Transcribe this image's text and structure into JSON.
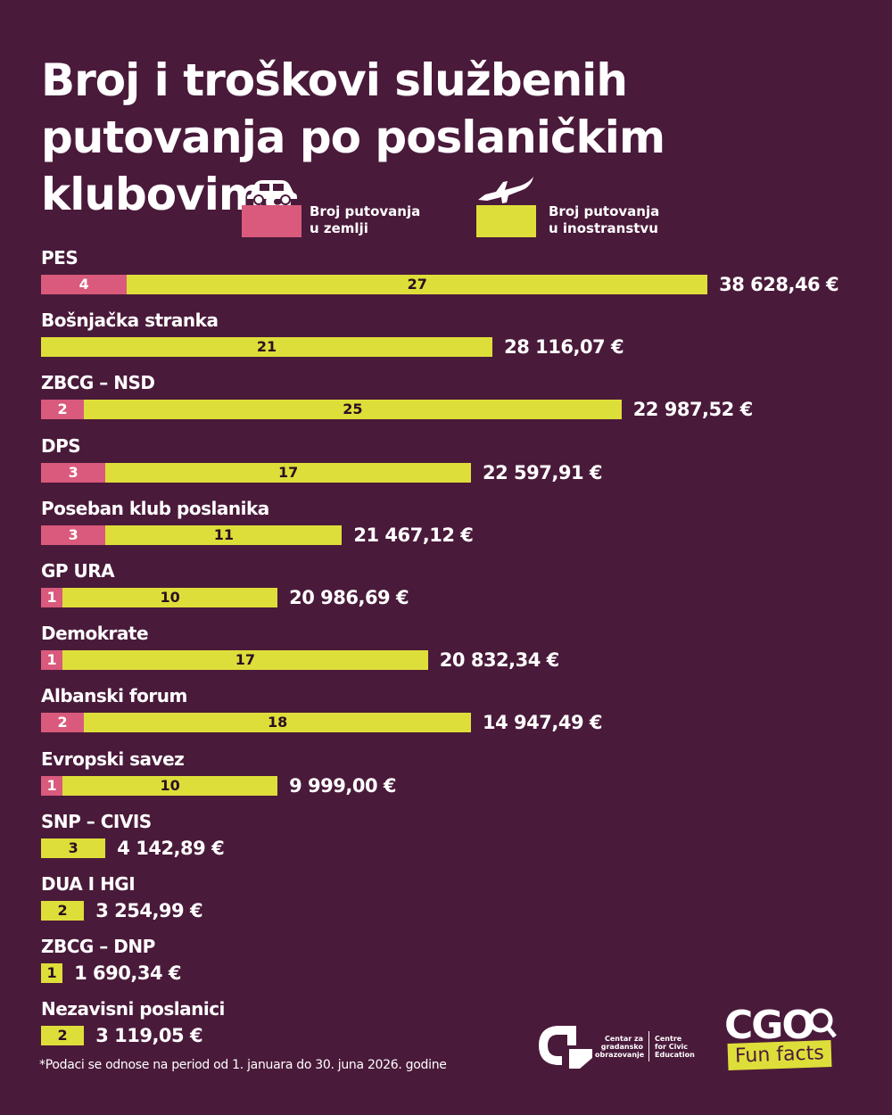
{
  "title": "Broj i troškovi službenih putovanja po poslaničkim klubovima",
  "legend": {
    "domestic": {
      "line1": "Broj putovanja",
      "line2": "u zemlji",
      "icon": "car-icon"
    },
    "abroad": {
      "line1": "Broj putovanja",
      "line2": "u inostranstvu",
      "icon": "airplane-icon"
    }
  },
  "colors": {
    "background": "#4a1a3a",
    "domestic": "#d95a7c",
    "abroad": "#dede3a",
    "text": "#ffffff"
  },
  "chart_data": {
    "type": "bar",
    "orientation": "horizontal",
    "stacked": true,
    "title": "Broj i troškovi službenih putovanja po poslaničkim klubovima",
    "categories": [
      "PES",
      "Bošnjačka stranka",
      "ZBCG – NSD",
      "DPS",
      "Poseban klub poslanika",
      "GP URA",
      "Demokrate",
      "Albanski forum",
      "Evropski savez",
      "SNP – CIVIS",
      "DUA I HGI",
      "ZBCG – DNP",
      "Nezavisni poslanici"
    ],
    "series": [
      {
        "name": "Broj putovanja u zemlji",
        "values": [
          4,
          0,
          2,
          3,
          3,
          1,
          1,
          2,
          1,
          0,
          0,
          0,
          0
        ]
      },
      {
        "name": "Broj putovanja u inostranstvu",
        "values": [
          27,
          21,
          25,
          17,
          11,
          10,
          17,
          18,
          10,
          3,
          2,
          1,
          2
        ]
      }
    ],
    "costs": [
      "38 628,46 €",
      "28 116,07 €",
      "22 987,52 €",
      "22 597,91 €",
      "21 467,12 €",
      "20 986,69 €",
      "20 832,34 €",
      "14 947,49 €",
      "9 999,00 €",
      "4 142,89 €",
      "3 254,99 €",
      "1 690,34 €",
      "3 119,05 €"
    ],
    "grid": false,
    "legend_position": "top"
  },
  "footnote": "*Podaci se odnose na period od 1. januara do 30. juna 2026. godine",
  "org": {
    "name_local": [
      "Centar za",
      "gradansko",
      "obrazovanje"
    ],
    "name_en": [
      "Centre",
      "for Civic",
      "Education"
    ]
  },
  "brand": {
    "cgo": "CGO",
    "tagline": "Fun facts"
  }
}
